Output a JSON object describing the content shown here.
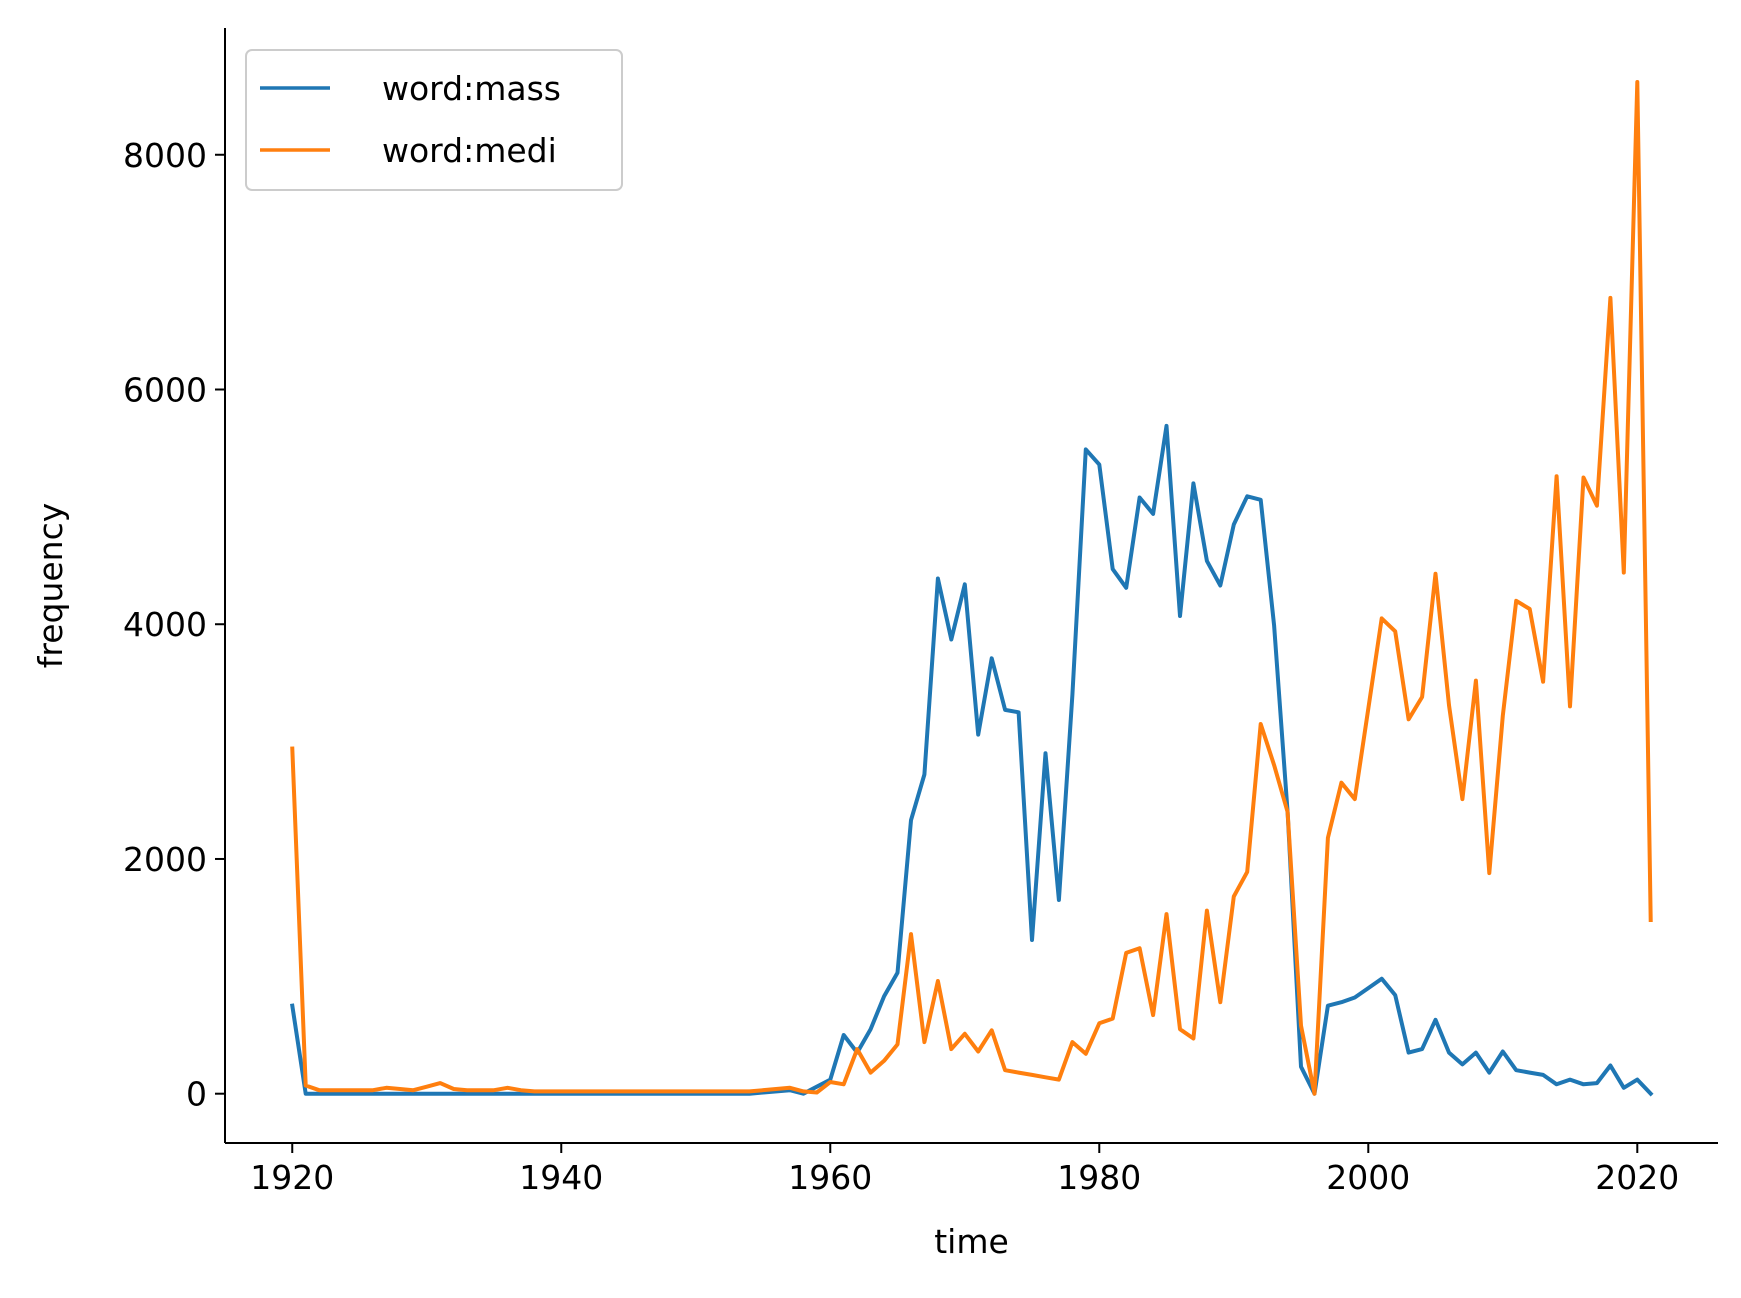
{
  "chart_data": {
    "type": "line",
    "title": "",
    "xlabel": "time",
    "ylabel": "frequency",
    "xlim": [
      1915,
      2026
    ],
    "ylim": [
      -420,
      9080
    ],
    "xticks": [
      "1920",
      "1940",
      "1960",
      "1980",
      "2000",
      "2020"
    ],
    "yticks": [
      "0",
      "2000",
      "4000",
      "6000",
      "8000"
    ],
    "grid": false,
    "legend_position": "top-left",
    "series": [
      {
        "name": "word:mass",
        "color": "#1f77b4",
        "x": [
          1920,
          1921,
          1922,
          1923,
          1924,
          1925,
          1926,
          1927,
          1928,
          1929,
          1930,
          1931,
          1932,
          1933,
          1934,
          1935,
          1936,
          1937,
          1938,
          1939,
          1940,
          1945,
          1950,
          1954,
          1957,
          1958,
          1959,
          1960,
          1961,
          1962,
          1963,
          1964,
          1965,
          1966,
          1967,
          1968,
          1969,
          1970,
          1971,
          1972,
          1973,
          1974,
          1975,
          1976,
          1977,
          1978,
          1979,
          1980,
          1981,
          1982,
          1983,
          1984,
          1985,
          1986,
          1987,
          1988,
          1989,
          1990,
          1991,
          1992,
          1993,
          1994,
          1995,
          1996,
          1997,
          1998,
          1999,
          2000,
          2001,
          2002,
          2003,
          2004,
          2005,
          2006,
          2007,
          2008,
          2009,
          2010,
          2011,
          2012,
          2013,
          2014,
          2015,
          2016,
          2017,
          2018,
          2019,
          2020,
          2021
        ],
        "y": [
          750,
          0,
          0,
          0,
          0,
          0,
          0,
          0,
          0,
          0,
          0,
          0,
          0,
          0,
          0,
          0,
          0,
          0,
          0,
          0,
          0,
          0,
          0,
          0,
          30,
          0,
          60,
          120,
          500,
          350,
          550,
          830,
          1030,
          2330,
          2720,
          4390,
          3870,
          4340,
          3060,
          3710,
          3270,
          3250,
          1310,
          2900,
          1650,
          3400,
          5490,
          5360,
          4470,
          4310,
          5080,
          4940,
          5690,
          4070,
          5200,
          4540,
          4330,
          4850,
          5090,
          5060,
          3990,
          2400,
          230,
          0,
          750,
          780,
          820,
          900,
          980,
          840,
          350,
          380,
          630,
          350,
          250,
          350,
          180,
          360,
          200,
          180,
          160,
          80,
          120,
          80,
          90,
          240,
          50,
          120,
          0
        ]
      },
      {
        "name": "word:medi",
        "color": "#ff7f0e",
        "x": [
          1920,
          1921,
          1922,
          1923,
          1924,
          1925,
          1926,
          1927,
          1928,
          1929,
          1930,
          1931,
          1932,
          1933,
          1934,
          1935,
          1936,
          1937,
          1938,
          1939,
          1940,
          1945,
          1950,
          1954,
          1957,
          1958,
          1959,
          1960,
          1961,
          1962,
          1963,
          1964,
          1965,
          1966,
          1967,
          1968,
          1969,
          1970,
          1971,
          1972,
          1973,
          1974,
          1975,
          1976,
          1977,
          1978,
          1979,
          1980,
          1981,
          1982,
          1983,
          1984,
          1985,
          1986,
          1987,
          1988,
          1989,
          1990,
          1991,
          1992,
          1993,
          1994,
          1995,
          1996,
          1997,
          1998,
          1999,
          2000,
          2001,
          2002,
          2003,
          2004,
          2005,
          2006,
          2007,
          2008,
          2009,
          2010,
          2011,
          2012,
          2013,
          2014,
          2015,
          2016,
          2017,
          2018,
          2019,
          2020,
          2021
        ],
        "y": [
          2940,
          70,
          30,
          30,
          30,
          30,
          30,
          50,
          40,
          30,
          60,
          90,
          40,
          30,
          30,
          30,
          50,
          30,
          20,
          20,
          20,
          20,
          20,
          20,
          50,
          20,
          10,
          100,
          80,
          380,
          180,
          280,
          420,
          1360,
          440,
          960,
          380,
          510,
          360,
          540,
          200,
          180,
          160,
          140,
          120,
          440,
          340,
          600,
          640,
          1200,
          1240,
          670,
          1530,
          550,
          470,
          1560,
          780,
          1680,
          1890,
          3150,
          2800,
          2400,
          580,
          0,
          2180,
          2650,
          2510,
          3280,
          4050,
          3940,
          3190,
          3380,
          4430,
          3310,
          2510,
          3520,
          1880,
          3220,
          4200,
          4130,
          3510,
          5260,
          3300,
          5250,
          5010,
          6780,
          4440,
          8620,
          1480
        ]
      }
    ]
  }
}
